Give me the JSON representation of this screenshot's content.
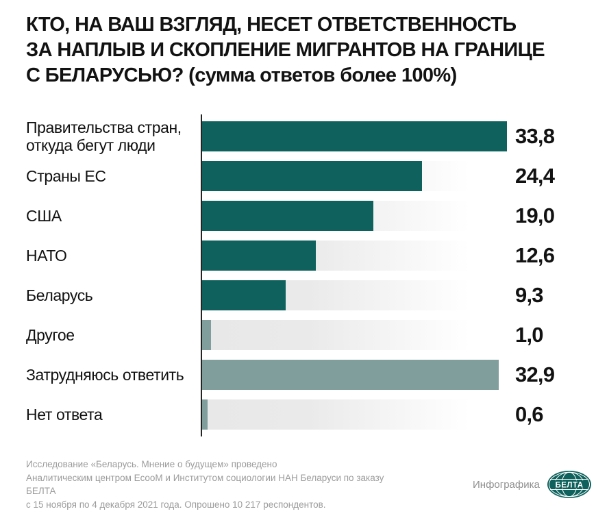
{
  "title": {
    "lines": [
      "КТО, НА ВАШ ВЗГЛЯД, НЕСЕТ ОТВЕТСТВЕННОСТЬ",
      "ЗА НАПЛЫВ И СКОПЛЕНИЕ МИГРАНТОВ НА ГРАНИЦЕ",
      "С БЕЛАРУСЬЮ? (сумма ответов более 100%)"
    ]
  },
  "chart_data": {
    "type": "bar",
    "orientation": "horizontal",
    "title": "КТО, НА ВАШ ВЗГЛЯД, НЕСЕТ ОТВЕТСТВЕННОСТЬ ЗА НАПЛЫВ И СКОПЛЕНИЕ МИГРАНТОВ НА ГРАНИЦЕ С БЕЛАРУСЬЮ? (сумма ответов более 100%)",
    "categories": [
      "Правительства стран, откуда бегут люди",
      "Страны ЕС",
      "США",
      "НАТО",
      "Беларусь",
      "Другое",
      "Затрудняюсь ответить",
      "Нет ответа"
    ],
    "values": [
      33.8,
      24.4,
      19.0,
      12.6,
      9.3,
      1.0,
      32.9,
      0.6
    ],
    "value_labels": [
      "33,8",
      "24,4",
      "19,0",
      "12,6",
      "9,3",
      "1,0",
      "32,9",
      "0,6"
    ],
    "bar_colors": [
      "#0e615c",
      "#0e615c",
      "#0e615c",
      "#0e615c",
      "#0e615c",
      "#7f9e9c",
      "#7f9e9c",
      "#7f9e9c"
    ],
    "xlim": [
      0,
      33.8
    ],
    "grid": false,
    "legend": false,
    "xlabel": "",
    "ylabel": ""
  },
  "footer": {
    "lines": [
      "Исследование «Беларусь. Мнение о будущем» проведено",
      "Аналитическим центром EcooM и Институтом социологии НАН Беларуси по заказу БЕЛТА",
      "с 15 ноября по 4 декабря 2021 года. Опрошено 10 217 респондентов."
    ]
  },
  "credits": {
    "label": "Инфографика",
    "logo_text": "БЕЛТА"
  },
  "colors": {
    "bar_primary": "#0e615c",
    "bar_secondary": "#7f9e9c",
    "track": "#e8e8e8",
    "text": "#121212",
    "footer_text": "#9b9b9b",
    "logo": "#0e615c"
  }
}
